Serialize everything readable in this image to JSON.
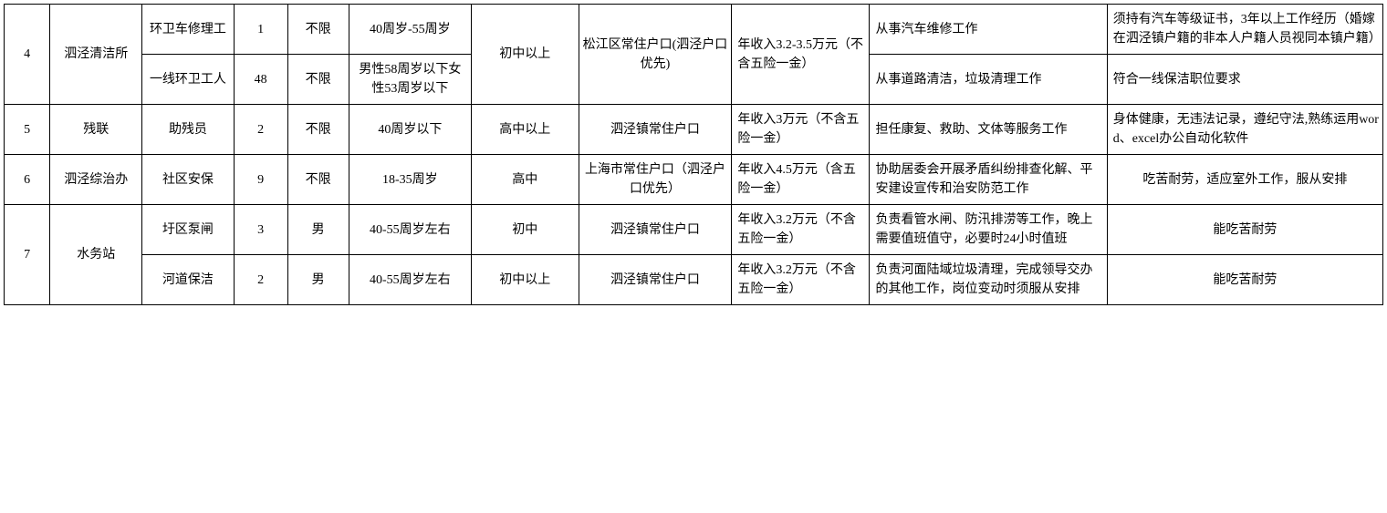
{
  "table": {
    "colors": {
      "border": "#000000",
      "background": "#ffffff",
      "text": "#000000"
    },
    "typography": {
      "fontsize_pt": 14,
      "font_family": "SimSun"
    },
    "column_widths_pct": [
      3,
      6,
      6,
      3.5,
      4,
      8,
      7,
      10,
      9,
      15.5,
      18
    ],
    "rows": [
      {
        "num": "4",
        "dept": "泗泾清洁所",
        "positions": [
          {
            "position": "环卫车修理工",
            "count": "1",
            "gender": "不限",
            "age": "40周岁-55周岁",
            "duties": "从事汽车维修工作",
            "requirements": "须持有汽车等级证书，3年以上工作经历（婚嫁在泗泾镇户籍的非本人户籍人员视同本镇户籍）"
          },
          {
            "position": "一线环卫工人",
            "count": "48",
            "gender": "不限",
            "age": "男性58周岁以下女性53周岁以下",
            "duties": "从事道路清洁，垃圾清理工作",
            "requirements": "符合一线保洁职位要求"
          }
        ],
        "education": "初中以上",
        "residence": "松江区常住户口(泗泾户口优先)",
        "salary": "年收入3.2-3.5万元（不含五险一金）"
      },
      {
        "num": "5",
        "dept": "残联",
        "position": "助残员",
        "count": "2",
        "gender": "不限",
        "age": "40周岁以下",
        "education": "高中以上",
        "residence": "泗泾镇常住户口",
        "salary": "年收入3万元（不含五险一金）",
        "duties": "担任康复、救助、文体等服务工作",
        "requirements": "身体健康，无违法记录，遵纪守法,熟练运用word、excel办公自动化软件"
      },
      {
        "num": "6",
        "dept": "泗泾综治办",
        "position": "社区安保",
        "count": "9",
        "gender": "不限",
        "age": "18-35周岁",
        "education": "高中",
        "residence": "上海市常住户口（泗泾户口优先）",
        "salary": "年收入4.5万元（含五险一金）",
        "duties": "协助居委会开展矛盾纠纷排查化解、平安建设宣传和治安防范工作",
        "requirements": "吃苦耐劳，适应室外工作，服从安排"
      },
      {
        "num": "7",
        "dept": "水务站",
        "positions": [
          {
            "position": "圩区泵闸",
            "count": "3",
            "gender": "男",
            "age": "40-55周岁左右",
            "education": "初中",
            "residence": "泗泾镇常住户口",
            "salary": "年收入3.2万元（不含五险一金）",
            "duties": "负责看管水闸、防汛排涝等工作，晚上需要值班值守，必要时24小时值班",
            "requirements": "能吃苦耐劳"
          },
          {
            "position": "河道保洁",
            "count": "2",
            "gender": "男",
            "age": "40-55周岁左右",
            "education": "初中以上",
            "residence": "泗泾镇常住户口",
            "salary": "年收入3.2万元（不含五险一金）",
            "duties": "负责河面陆域垃圾清理，完成领导交办的其他工作，岗位变动时须服从安排",
            "requirements": "能吃苦耐劳"
          }
        ]
      }
    ]
  }
}
